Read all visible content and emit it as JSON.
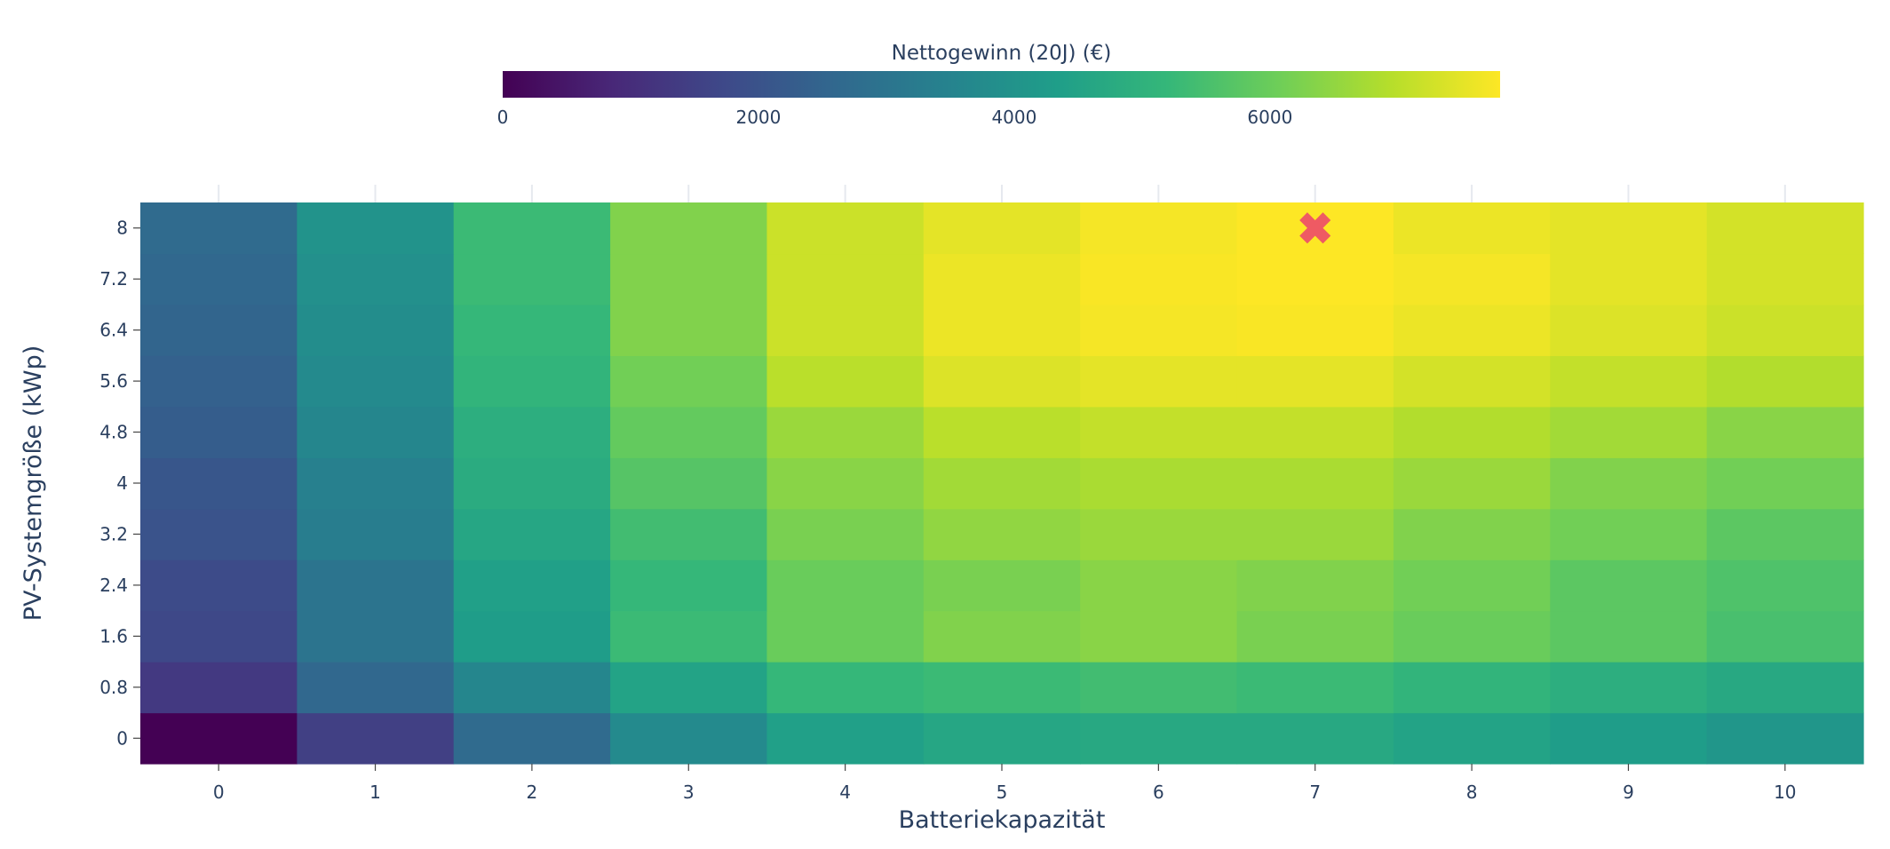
{
  "chart_data": {
    "type": "heatmap",
    "xlabel": "Batteriekapazität",
    "ylabel": "PV-Systemgröße (kWp)",
    "x": [
      0,
      1,
      2,
      3,
      4,
      5,
      6,
      7,
      8,
      9,
      10
    ],
    "x_tick_labels": [
      "0",
      "1",
      "2",
      "3",
      "4",
      "5",
      "6",
      "7",
      "8",
      "9",
      "10"
    ],
    "y": [
      0,
      0.8,
      1.6,
      2.4,
      3.2,
      4,
      4.8,
      5.6,
      6.4,
      7.2,
      8
    ],
    "y_tick_labels": [
      "0",
      "0.8",
      "1.6",
      "2.4",
      "3.2",
      "4",
      "4.8",
      "5.6",
      "6.4",
      "7.2",
      "8"
    ],
    "z": [
      [
        0,
        1500,
        2700,
        3700,
        4400,
        4600,
        4700,
        4700,
        4500,
        4300,
        4100
      ],
      [
        1300,
        2600,
        3600,
        4500,
        5200,
        5300,
        5400,
        5300,
        5100,
        4900,
        4700
      ],
      [
        1700,
        3000,
        4300,
        5300,
        6000,
        6300,
        6400,
        6200,
        6000,
        5800,
        5500
      ],
      [
        1800,
        3000,
        4400,
        5200,
        6000,
        6200,
        6400,
        6300,
        6100,
        5800,
        5600
      ],
      [
        2000,
        3300,
        4600,
        5400,
        6200,
        6500,
        6600,
        6600,
        6300,
        6100,
        5800
      ],
      [
        2100,
        3400,
        4800,
        5700,
        6400,
        6700,
        6800,
        6800,
        6600,
        6300,
        6100
      ],
      [
        2300,
        3600,
        4900,
        5900,
        6600,
        7000,
        7100,
        7100,
        6900,
        6700,
        6400
      ],
      [
        2400,
        3700,
        5100,
        6100,
        7000,
        7400,
        7500,
        7500,
        7300,
        7100,
        6900
      ],
      [
        2500,
        3800,
        5200,
        6300,
        7200,
        7600,
        7700,
        7750,
        7600,
        7400,
        7200
      ],
      [
        2600,
        3900,
        5300,
        6300,
        7200,
        7600,
        7750,
        7800,
        7700,
        7500,
        7300
      ],
      [
        2700,
        4000,
        5300,
        6300,
        7200,
        7500,
        7700,
        7800,
        7600,
        7500,
        7300
      ]
    ],
    "zrange": [
      0,
      7800
    ],
    "colorscale": "Viridis",
    "colorbar": {
      "title": "Nettogewinn (20J) (€)",
      "orientation": "horizontal",
      "placement": "top",
      "tick_values": [
        0,
        2000,
        4000,
        6000
      ],
      "tick_labels": [
        "0",
        "2000",
        "4000",
        "6000"
      ]
    },
    "marker": {
      "symbol": "x",
      "x": 7,
      "y": 8,
      "color": "#ef5a63"
    }
  }
}
